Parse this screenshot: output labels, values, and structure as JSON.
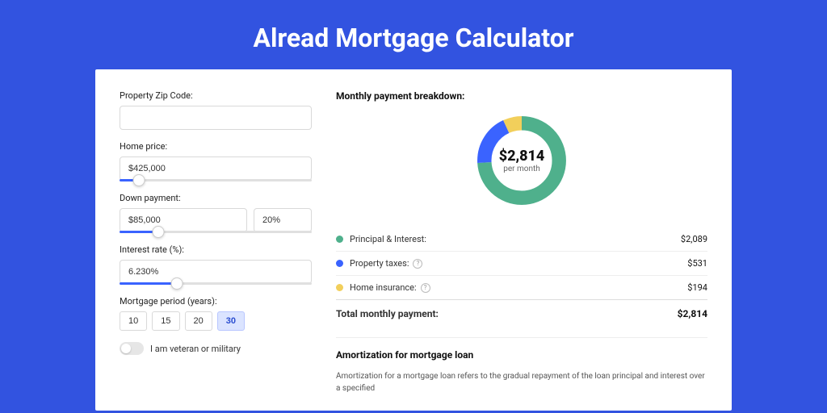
{
  "title": "Alread Mortgage Calculator",
  "colors": {
    "page_bg": "#3253e0",
    "panel_bg": "#ffffff",
    "accent": "#3a63ff",
    "green": "#4fb08c",
    "blue": "#3a63ff",
    "yellow": "#f2cf5b"
  },
  "form": {
    "zip_label": "Property Zip Code:",
    "zip_value": "",
    "home_price_label": "Home price:",
    "home_price_value": "$425,000",
    "home_price_slider_pct": 10,
    "down_payment_label": "Down payment:",
    "down_payment_value": "$85,000",
    "down_payment_pct": "20%",
    "down_payment_slider_pct": 20,
    "rate_label": "Interest rate (%):",
    "rate_value": "6.230%",
    "rate_slider_pct": 30,
    "period_label": "Mortgage period (years):",
    "period_options": [
      "10",
      "15",
      "20",
      "30"
    ],
    "period_selected": "30",
    "veteran_label": "I am veteran or military"
  },
  "breakdown": {
    "heading": "Monthly payment breakdown:",
    "donut": {
      "amount": "$2,814",
      "sub": "per month",
      "segments": [
        {
          "key": "principal_interest",
          "color": "#4fb08c",
          "pct": 74
        },
        {
          "key": "property_taxes",
          "color": "#3a63ff",
          "pct": 19
        },
        {
          "key": "home_insurance",
          "color": "#f2cf5b",
          "pct": 7
        }
      ]
    },
    "rows": [
      {
        "color": "#4fb08c",
        "label": "Principal & Interest:",
        "info": false,
        "value": "$2,089"
      },
      {
        "color": "#3a63ff",
        "label": "Property taxes:",
        "info": true,
        "value": "$531"
      },
      {
        "color": "#f2cf5b",
        "label": "Home insurance:",
        "info": true,
        "value": "$194"
      }
    ],
    "total_label": "Total monthly payment:",
    "total_value": "$2,814"
  },
  "amortization": {
    "heading": "Amortization for mortgage loan",
    "text": "Amortization for a mortgage loan refers to the gradual repayment of the loan principal and interest over a specified"
  }
}
